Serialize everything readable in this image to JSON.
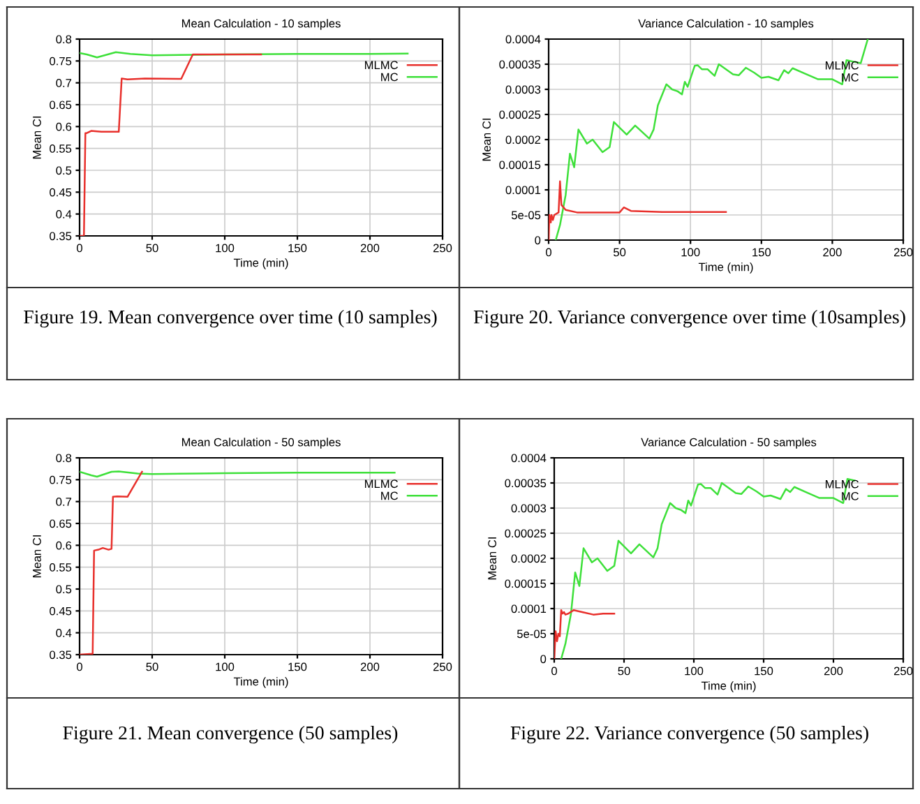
{
  "chart_data": [
    {
      "type": "line",
      "title": "Mean Calculation - 10 samples",
      "xlabel": "Time (min)",
      "ylabel": "Mean CI",
      "xlim": [
        0,
        250
      ],
      "xticks": [
        0,
        50,
        100,
        150,
        200,
        250
      ],
      "ylim": [
        0.35,
        0.8
      ],
      "yticks": [
        0.35,
        0.4,
        0.45,
        0.5,
        0.55,
        0.6,
        0.65,
        0.7,
        0.75,
        0.8
      ],
      "grid": true,
      "legend": "top right",
      "annotations": [
        "Figure 19. Mean convergence over time (10 samples)"
      ],
      "series": [
        {
          "name": "MLMC",
          "color": "#e8302c",
          "x": [
            0,
            3,
            4,
            5,
            8,
            15,
            27,
            29,
            33,
            45,
            70,
            78,
            125
          ],
          "values": [
            0.35,
            0.35,
            0.585,
            0.585,
            0.59,
            0.588,
            0.588,
            0.71,
            0.708,
            0.71,
            0.709,
            0.765,
            0.765
          ]
        },
        {
          "name": "MC",
          "color": "#3ee03a",
          "x": [
            0,
            5,
            12,
            25,
            35,
            50,
            80,
            100,
            150,
            200,
            226
          ],
          "values": [
            0.768,
            0.765,
            0.758,
            0.77,
            0.766,
            0.763,
            0.764,
            0.765,
            0.766,
            0.766,
            0.767
          ]
        }
      ]
    },
    {
      "type": "line",
      "title": "Variance Calculation - 10 samples",
      "xlabel": "Time (min)",
      "ylabel": "Mean CI",
      "xlim": [
        0,
        250
      ],
      "xticks": [
        0,
        50,
        100,
        150,
        200,
        250
      ],
      "ylim": [
        0,
        0.0004
      ],
      "yticks": [
        0,
        5e-05,
        0.0001,
        0.00015,
        0.0002,
        0.00025,
        0.0003,
        0.00035,
        0.0004
      ],
      "grid": true,
      "legend": "top right",
      "annotations": [
        "Figure 20. Variance convergence over time (10samples)"
      ],
      "series": [
        {
          "name": "MLMC",
          "color": "#e8302c",
          "x": [
            0,
            0.5,
            1.5,
            2,
            3,
            4,
            7,
            8,
            9,
            12,
            20,
            40,
            50,
            53,
            58,
            80,
            125
          ],
          "values": [
            0,
            5e-05,
            3.5e-05,
            5e-05,
            4e-05,
            5e-05,
            5.5e-05,
            0.000117,
            7e-05,
            6e-05,
            5.5e-05,
            5.5e-05,
            5.5e-05,
            6.5e-05,
            5.8e-05,
            5.6e-05,
            5.6e-05
          ]
        },
        {
          "name": "MC",
          "color": "#3ee03a",
          "x": [
            5,
            8,
            12,
            15,
            18,
            21,
            27,
            31,
            38,
            43,
            46,
            55,
            61,
            71,
            74,
            77,
            83,
            87,
            91,
            94,
            96,
            98,
            103,
            105,
            108,
            112,
            117,
            120,
            130,
            134,
            139,
            145,
            150,
            155,
            162,
            166,
            169,
            172,
            180,
            190,
            200,
            207,
            210,
            215,
            220,
            225
          ],
          "values": [
            0,
            3e-05,
            9e-05,
            0.000172,
            0.000145,
            0.00022,
            0.000192,
            0.0002,
            0.000175,
            0.000185,
            0.000235,
            0.00021,
            0.000228,
            0.000202,
            0.00022,
            0.000268,
            0.00031,
            0.0003,
            0.000296,
            0.00029,
            0.000315,
            0.000305,
            0.000347,
            0.000348,
            0.00034,
            0.00034,
            0.000327,
            0.00035,
            0.00033,
            0.000328,
            0.000343,
            0.000333,
            0.000323,
            0.000325,
            0.000318,
            0.000338,
            0.000332,
            0.000342,
            0.000332,
            0.00032,
            0.00032,
            0.00031,
            0.000358,
            0.000355,
            0.000352,
            0.0004
          ]
        }
      ]
    },
    {
      "type": "line",
      "title": "Mean Calculation - 50 samples",
      "xlabel": "Time (min)",
      "ylabel": "Mean CI",
      "xlim": [
        0,
        250
      ],
      "xticks": [
        0,
        50,
        100,
        150,
        200,
        250
      ],
      "ylim": [
        0.35,
        0.8
      ],
      "yticks": [
        0.35,
        0.4,
        0.45,
        0.5,
        0.55,
        0.6,
        0.65,
        0.7,
        0.75,
        0.8
      ],
      "grid": true,
      "legend": "top right",
      "annotations": [
        "Figure 21. Mean convergence (50 samples)"
      ],
      "series": [
        {
          "name": "MLMC",
          "color": "#e8302c",
          "x": [
            0,
            9,
            10,
            13,
            16,
            20,
            22,
            23,
            26,
            33,
            43
          ],
          "values": [
            0.35,
            0.352,
            0.588,
            0.59,
            0.594,
            0.59,
            0.592,
            0.711,
            0.712,
            0.711,
            0.768
          ]
        },
        {
          "name": "MC",
          "color": "#3ee03a",
          "x": [
            0,
            8,
            12,
            22,
            27,
            40,
            50,
            80,
            100,
            150,
            217
          ],
          "values": [
            0.768,
            0.76,
            0.757,
            0.768,
            0.769,
            0.764,
            0.763,
            0.764,
            0.765,
            0.766,
            0.766
          ]
        }
      ]
    },
    {
      "type": "line",
      "title": "Variance Calculation - 50 samples",
      "xlabel": "Time (min)",
      "ylabel": "Mean CI",
      "xlim": [
        0,
        250
      ],
      "xticks": [
        0,
        50,
        100,
        150,
        200,
        250
      ],
      "ylim": [
        0,
        0.0004
      ],
      "yticks": [
        0,
        5e-05,
        0.0001,
        0.00015,
        0.0002,
        0.00025,
        0.0003,
        0.00035,
        0.0004
      ],
      "grid": true,
      "legend": "top right",
      "annotations": [
        "Figure 22. Variance convergence (50 samples)"
      ],
      "series": [
        {
          "name": "MLMC",
          "color": "#e8302c",
          "x": [
            0,
            1,
            2,
            3,
            4,
            5,
            6,
            7,
            8,
            10,
            14,
            20,
            28,
            35,
            43
          ],
          "values": [
            0,
            5.5e-05,
            3.5e-05,
            5e-05,
            4.5e-05,
            9.7e-05,
            9e-05,
            9.3e-05,
            8.8e-05,
            9e-05,
            9.7e-05,
            9.3e-05,
            8.8e-05,
            9e-05,
            9e-05
          ]
        },
        {
          "name": "MC",
          "color": "#3ee03a",
          "x": [
            5,
            8,
            12,
            15,
            18,
            21,
            27,
            31,
            38,
            43,
            46,
            55,
            61,
            71,
            74,
            77,
            83,
            87,
            91,
            94,
            96,
            98,
            103,
            105,
            108,
            112,
            117,
            120,
            130,
            134,
            139,
            145,
            150,
            155,
            162,
            166,
            169,
            172,
            180,
            190,
            200,
            207,
            210,
            215
          ],
          "values": [
            0,
            3e-05,
            9e-05,
            0.000172,
            0.000145,
            0.00022,
            0.000192,
            0.0002,
            0.000175,
            0.000185,
            0.000235,
            0.00021,
            0.000228,
            0.000202,
            0.00022,
            0.000268,
            0.00031,
            0.0003,
            0.000296,
            0.00029,
            0.000315,
            0.000305,
            0.000347,
            0.000348,
            0.00034,
            0.00034,
            0.000327,
            0.00035,
            0.00033,
            0.000328,
            0.000343,
            0.000333,
            0.000323,
            0.000325,
            0.000318,
            0.000338,
            0.000332,
            0.000342,
            0.000332,
            0.00032,
            0.00032,
            0.00031,
            0.000358,
            0.000355
          ]
        }
      ]
    }
  ]
}
